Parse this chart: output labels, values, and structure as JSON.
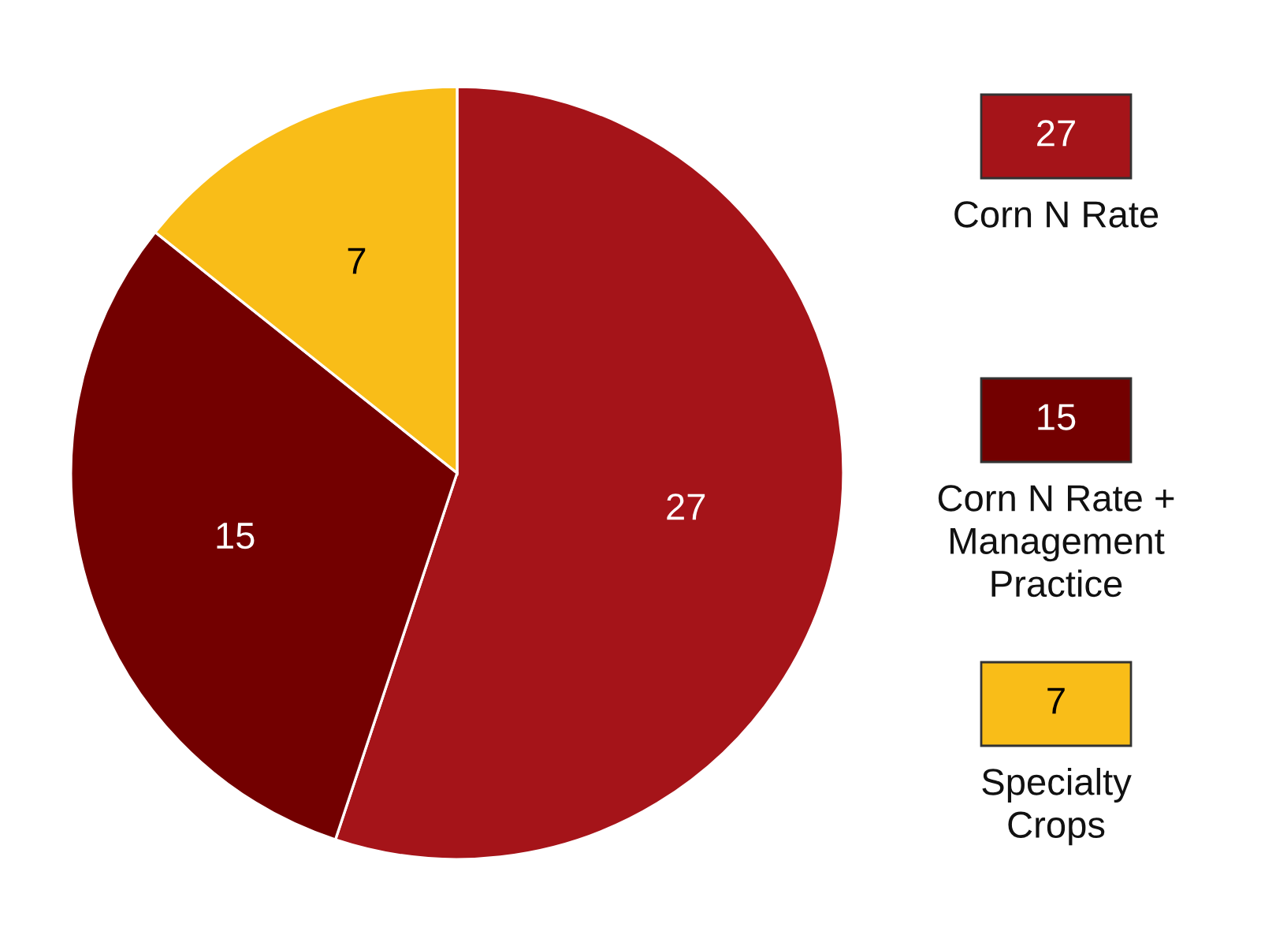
{
  "chart_data": {
    "type": "pie",
    "categories": [
      "Corn N Rate",
      "Corn N Rate +\nManagement\nPractice",
      "Specialty\nCrops"
    ],
    "values": [
      27,
      15,
      7
    ],
    "annotations": [
      "27",
      "15",
      "7"
    ],
    "colors": [
      "#a51419",
      "#730000",
      "#f9bd18"
    ],
    "data_labels": true,
    "legend": "right"
  }
}
